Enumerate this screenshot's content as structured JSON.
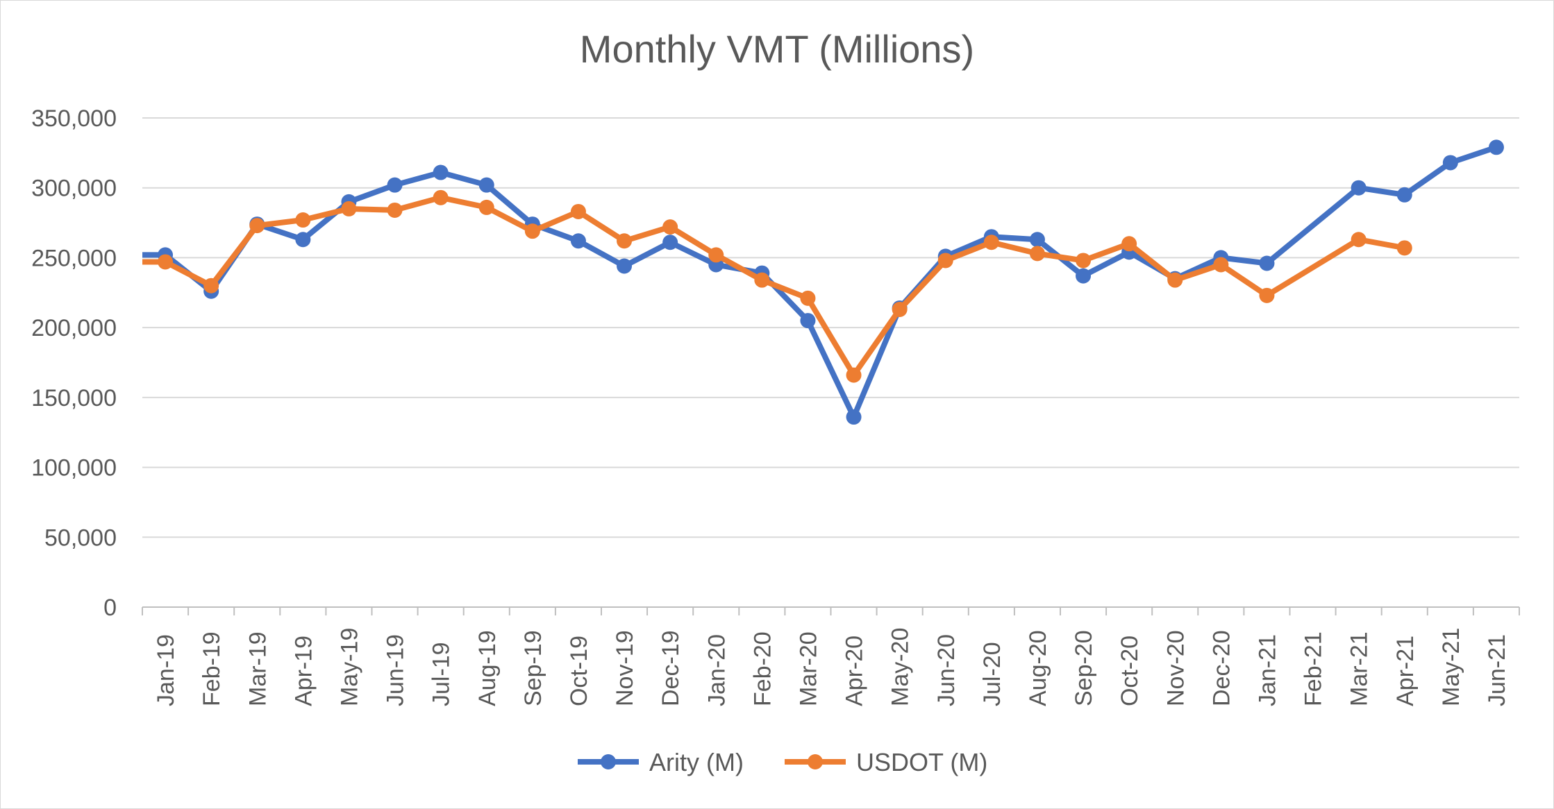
{
  "chart_data": {
    "type": "line",
    "title": "Monthly VMT (Millions)",
    "xlabel": "",
    "ylabel": "",
    "categories": [
      "Jan-19",
      "Feb-19",
      "Mar-19",
      "Apr-19",
      "May-19",
      "Jun-19",
      "Jul-19",
      "Aug-19",
      "Sep-19",
      "Oct-19",
      "Nov-19",
      "Dec-19",
      "Jan-20",
      "Feb-20",
      "Mar-20",
      "Apr-20",
      "May-20",
      "Jun-20",
      "Jul-20",
      "Aug-20",
      "Sep-20",
      "Oct-20",
      "Nov-20",
      "Dec-20",
      "Jan-21",
      "Feb-21",
      "Mar-21",
      "Apr-21",
      "May-21",
      "Jun-21"
    ],
    "ylim": [
      0,
      350000
    ],
    "yticks": [
      0,
      50000,
      100000,
      150000,
      200000,
      250000,
      300000,
      350000
    ],
    "ytick_labels": [
      "0",
      "50,000",
      "100,000",
      "150,000",
      "200,000",
      "250,000",
      "300,000",
      "350,000"
    ],
    "grid": true,
    "legend_position": "bottom",
    "series": [
      {
        "name": "Arity (M)",
        "color": "#4472C4",
        "values": [
          252000,
          226000,
          274000,
          263000,
          290000,
          302000,
          311000,
          302000,
          274000,
          262000,
          244000,
          261000,
          245000,
          239000,
          205000,
          136000,
          214000,
          251000,
          265000,
          263000,
          237000,
          254000,
          235000,
          250000,
          246000,
          null,
          300000,
          295000,
          318000,
          329000
        ]
      },
      {
        "name": "USDOT (M)",
        "color": "#ED7D31",
        "values": [
          247000,
          230000,
          273000,
          277000,
          285000,
          284000,
          293000,
          286000,
          269000,
          283000,
          262000,
          272000,
          252000,
          234000,
          221000,
          166000,
          213000,
          248000,
          261000,
          253000,
          248000,
          260000,
          234000,
          245000,
          223000,
          null,
          263000,
          257000,
          null,
          null
        ]
      }
    ]
  }
}
